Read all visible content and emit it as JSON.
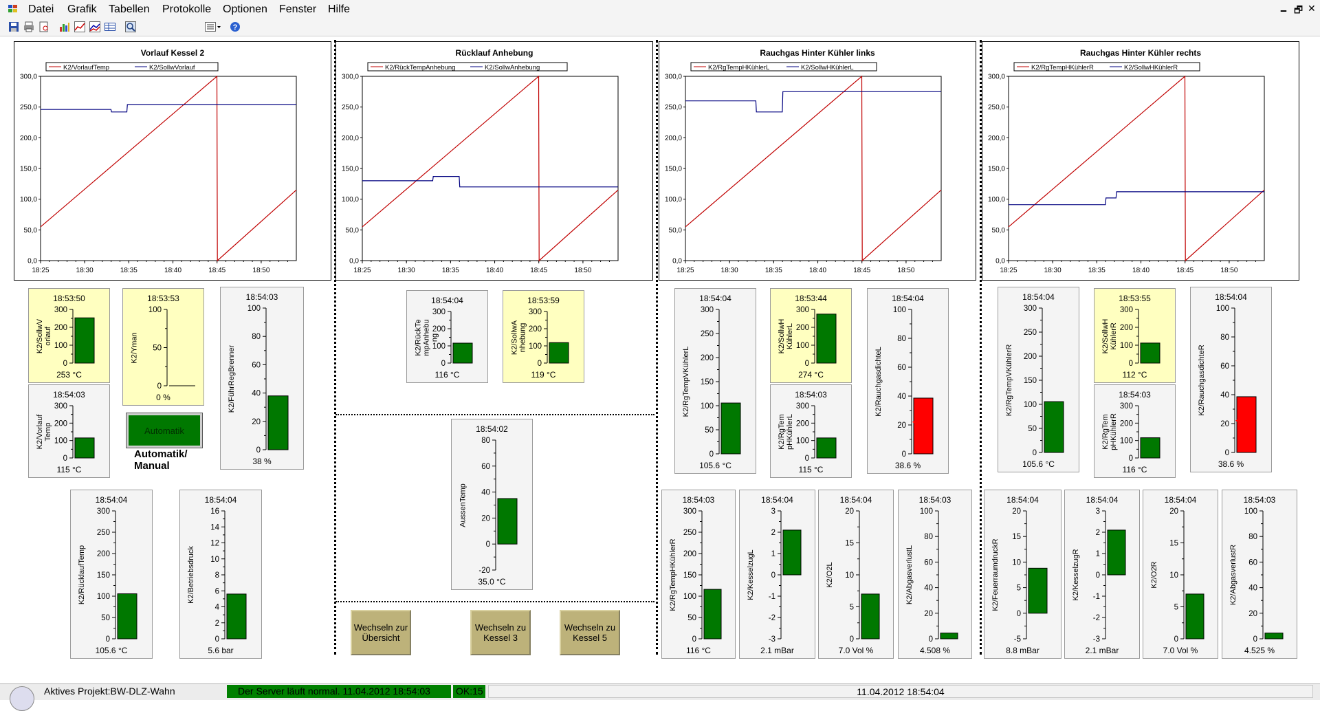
{
  "menu": [
    "Datei",
    "Grafik",
    "Tabellen",
    "Protokolle",
    "Optionen",
    "Fenster",
    "Hilfe"
  ],
  "window_buttons": [
    "🗕",
    "🗗",
    "✕"
  ],
  "charts": [
    {
      "title": "Vorlauf Kessel 2",
      "legend": [
        "K2/VorlaufTemp",
        "K2/SollwVorlauf"
      ]
    },
    {
      "title": "Rücklauf Anhebung",
      "legend": [
        "K2/RückTempAnhebung",
        "K2/SollwAnhebung"
      ]
    },
    {
      "title": "Rauchgas Hinter Kühler links",
      "legend": [
        "K2/RgTempHKühlerL",
        "K2/SollwHKühlerL"
      ]
    },
    {
      "title": "Rauchgas Hinter Kühler rechts",
      "legend": [
        "K2/RgTempHKühlerR",
        "K2/SollwHKühlerR"
      ]
    }
  ],
  "chart_data": [
    {
      "type": "line",
      "title": "Vorlauf Kessel 2",
      "ylim": [
        0,
        300
      ],
      "yticks": [
        "0,0",
        "50,0",
        "100,0",
        "150,0",
        "200,0",
        "250,0",
        "300,0"
      ],
      "xticks": [
        "18:25",
        "18:30",
        "18:35",
        "18:40",
        "18:45",
        "18:50"
      ],
      "series": [
        {
          "name": "K2/VorlaufTemp",
          "color": "#c00000",
          "x": [
            18.417,
            18.75,
            18.751,
            18.9
          ],
          "y": [
            55,
            300,
            0,
            115
          ]
        },
        {
          "name": "K2/SollwVorlauf",
          "color": "#000080",
          "x": [
            18.417,
            18.55,
            18.551,
            18.58,
            18.581,
            18.9
          ],
          "y": [
            246,
            246,
            242,
            242,
            254,
            254
          ]
        }
      ]
    },
    {
      "type": "line",
      "title": "Rücklauf Anhebung",
      "ylim": [
        0,
        300
      ],
      "yticks": [
        "0,0",
        "50,0",
        "100,0",
        "150,0",
        "200,0",
        "250,0",
        "300,0"
      ],
      "xticks": [
        "18:25",
        "18:30",
        "18:35",
        "18:40",
        "18:45",
        "18:50"
      ],
      "series": [
        {
          "name": "K2/RückTempAnhebung",
          "color": "#c00000",
          "x": [
            18.417,
            18.75,
            18.751,
            18.9
          ],
          "y": [
            55,
            300,
            0,
            115
          ]
        },
        {
          "name": "K2/SollwAnhebung",
          "color": "#000080",
          "x": [
            18.417,
            18.55,
            18.551,
            18.6,
            18.601,
            18.9
          ],
          "y": [
            130,
            130,
            137,
            137,
            120,
            120
          ]
        }
      ]
    },
    {
      "type": "line",
      "title": "Rauchgas Hinter Kühler links",
      "ylim": [
        0,
        300
      ],
      "yticks": [
        "0,0",
        "50,0",
        "100,0",
        "150,0",
        "200,0",
        "250,0",
        "300,0"
      ],
      "xticks": [
        "18:25",
        "18:30",
        "18:35",
        "18:40",
        "18:45",
        "18:50"
      ],
      "series": [
        {
          "name": "K2/RgTempHKühlerL",
          "color": "#c00000",
          "x": [
            18.417,
            18.75,
            18.751,
            18.9
          ],
          "y": [
            55,
            300,
            0,
            115
          ]
        },
        {
          "name": "K2/SollwHKühlerL",
          "color": "#000080",
          "x": [
            18.417,
            18.55,
            18.551,
            18.6,
            18.601,
            18.9
          ],
          "y": [
            260,
            260,
            242,
            242,
            275,
            275
          ]
        }
      ]
    },
    {
      "type": "line",
      "title": "Rauchgas Hinter Kühler rechts",
      "ylim": [
        0,
        300
      ],
      "yticks": [
        "0,0",
        "50,0",
        "100,0",
        "150,0",
        "200,0",
        "250,0",
        "300,0"
      ],
      "xticks": [
        "18:25",
        "18:30",
        "18:35",
        "18:40",
        "18:45",
        "18:50"
      ],
      "series": [
        {
          "name": "K2/RgTempHKühlerR",
          "color": "#c00000",
          "x": [
            18.417,
            18.75,
            18.751,
            18.9
          ],
          "y": [
            55,
            300,
            0,
            115
          ]
        },
        {
          "name": "K2/SollwHKühlerR",
          "color": "#000080",
          "x": [
            18.417,
            18.6,
            18.601,
            18.62,
            18.621,
            18.9
          ],
          "y": [
            91,
            91,
            102,
            102,
            112,
            112
          ]
        }
      ]
    }
  ],
  "gauges": [
    {
      "name": "K2/SollwVorlauf",
      "name_lines": [
        "K2/SollwV",
        "orlauf"
      ],
      "time": "18:53:50",
      "value_text": "253 °C",
      "value": 253,
      "min": 0,
      "max": 300,
      "ticks": [
        "300",
        "200",
        "100",
        "0"
      ],
      "yellow": true,
      "color": "#007800"
    },
    {
      "name": "K2/Yman",
      "name_lines": [
        "K2/Yman"
      ],
      "time": "18:53:53",
      "value_text": "0 %",
      "value": 0,
      "min": 0,
      "max": 100,
      "ticks": [
        "100",
        "50",
        "0"
      ],
      "yellow": true,
      "color": "#007800"
    },
    {
      "name": "K2/FührRegBrenner",
      "name_lines": [
        "K2/FührRegBrenner"
      ],
      "time": "18:54:03",
      "value_text": "38 %",
      "value": 38,
      "min": 0,
      "max": 100,
      "ticks": [
        "100",
        "80",
        "60",
        "40",
        "20",
        "0"
      ],
      "yellow": false,
      "color": "#007800"
    },
    {
      "name": "K2/VorlaufTemp",
      "name_lines": [
        "K2/Vorlauf",
        "Temp"
      ],
      "time": "18:54:03",
      "value_text": "115 °C",
      "value": 115,
      "min": 0,
      "max": 300,
      "ticks": [
        "300",
        "200",
        "100",
        "0"
      ],
      "yellow": false,
      "color": "#007800"
    },
    {
      "name": "K2/RücklaufTemp",
      "name_lines": [
        "K2/RücklaufTemp"
      ],
      "time": "18:54:04",
      "value_text": "105.6 °C",
      "value": 105.6,
      "min": 0,
      "max": 300,
      "ticks": [
        "300",
        "250",
        "200",
        "150",
        "100",
        "50",
        "0"
      ],
      "yellow": false,
      "color": "#007800"
    },
    {
      "name": "K2/Betriebsdruck",
      "name_lines": [
        "K2/Betriebsdruck"
      ],
      "time": "18:54:04",
      "value_text": "5.6 bar",
      "value": 5.6,
      "min": 0,
      "max": 16,
      "ticks": [
        "16",
        "14",
        "12",
        "10",
        "8",
        "6",
        "4",
        "2",
        "0"
      ],
      "yellow": false,
      "color": "#007800"
    },
    {
      "name": "K2/RückTempAnhebung",
      "name_lines": [
        "K2/RückTe",
        "mpAnhebu",
        "ng"
      ],
      "time": "18:54:04",
      "value_text": "116 °C",
      "value": 116,
      "min": 0,
      "max": 300,
      "ticks": [
        "300",
        "200",
        "100",
        "0"
      ],
      "yellow": false,
      "color": "#007800"
    },
    {
      "name": "K2/SollwAnhebung",
      "name_lines": [
        "K2/SollwA",
        "nhebung"
      ],
      "time": "18:53:59",
      "value_text": "119 °C",
      "value": 119,
      "min": 0,
      "max": 300,
      "ticks": [
        "300",
        "200",
        "100",
        "0"
      ],
      "yellow": true,
      "color": "#007800"
    },
    {
      "name": "AussenTemp",
      "name_lines": [
        "AussenTemp"
      ],
      "time": "18:54:02",
      "value_text": "35.0 °C",
      "value": 35,
      "min": -20,
      "max": 80,
      "ticks": [
        "80",
        "60",
        "40",
        "20",
        "0",
        "-20"
      ],
      "yellow": false,
      "color": "#007800"
    },
    {
      "name": "K2/RgTempVKühlerL",
      "name_lines": [
        "K2/RgTempVKühlerL"
      ],
      "time": "18:54:04",
      "value_text": "105.6 °C",
      "value": 105.6,
      "min": 0,
      "max": 300,
      "ticks": [
        "300",
        "250",
        "200",
        "150",
        "100",
        "50",
        "0"
      ],
      "yellow": false,
      "color": "#007800"
    },
    {
      "name": "K2/SollwHKühlerL",
      "name_lines": [
        "K2/SollwH",
        "KühlerL"
      ],
      "time": "18:53:44",
      "value_text": "274 °C",
      "value": 274,
      "min": 0,
      "max": 300,
      "ticks": [
        "300",
        "200",
        "100",
        "0"
      ],
      "yellow": true,
      "color": "#007800"
    },
    {
      "name": "K2/RgTempHKühlerL",
      "name_lines": [
        "K2/RgTem",
        "pHKühlerL"
      ],
      "time": "18:54:03",
      "value_text": "115 °C",
      "value": 115,
      "min": 0,
      "max": 300,
      "ticks": [
        "300",
        "200",
        "100",
        "0"
      ],
      "yellow": false,
      "color": "#007800"
    },
    {
      "name": "K2/RauchgasdichteL",
      "name_lines": [
        "K2/RauchgasdichteL"
      ],
      "time": "18:54:04",
      "value_text": "38.6 %",
      "value": 38.6,
      "min": 0,
      "max": 100,
      "ticks": [
        "100",
        "80",
        "60",
        "40",
        "20",
        "0"
      ],
      "yellow": false,
      "color": "#ff0000",
      "marker": 22
    },
    {
      "name": "K2/RgTempVKühlerR",
      "name_lines": [
        "K2/RgTempVKühlerR"
      ],
      "time": "18:54:04",
      "value_text": "105.6 °C",
      "value": 105.6,
      "min": 0,
      "max": 300,
      "ticks": [
        "300",
        "250",
        "200",
        "150",
        "100",
        "50",
        "0"
      ],
      "yellow": false,
      "color": "#007800"
    },
    {
      "name": "K2/SollwHKühlerR",
      "name_lines": [
        "K2/SollwH",
        "KühlerR"
      ],
      "time": "18:53:55",
      "value_text": "112 °C",
      "value": 112,
      "min": 0,
      "max": 300,
      "ticks": [
        "300",
        "200",
        "100",
        "0"
      ],
      "yellow": true,
      "color": "#007800"
    },
    {
      "name": "K2/RgTempHKühlerR",
      "name_lines": [
        "K2/RgTem",
        "pHKühlerR"
      ],
      "time": "18:54:03",
      "value_text": "116 °C",
      "value": 116,
      "min": 0,
      "max": 300,
      "ticks": [
        "300",
        "200",
        "100",
        "0"
      ],
      "yellow": false,
      "color": "#007800"
    },
    {
      "name": "K2/RauchgasdichteR",
      "name_lines": [
        "K2/RauchgasdichteR"
      ],
      "time": "18:54:04",
      "value_text": "38.6 %",
      "value": 38.6,
      "min": 0,
      "max": 100,
      "ticks": [
        "100",
        "80",
        "60",
        "40",
        "20",
        "0"
      ],
      "yellow": false,
      "color": "#ff0000",
      "marker": 22
    },
    {
      "name": "K2/RgTempHKühlerR",
      "name_lines": [
        "K2/RgTempHKühlerR"
      ],
      "time": "18:54:03",
      "value_text": "116 °C",
      "value": 116,
      "min": 0,
      "max": 300,
      "ticks": [
        "300",
        "250",
        "200",
        "150",
        "100",
        "50",
        "0"
      ],
      "yellow": false,
      "color": "#007800"
    },
    {
      "name": "K2/KesselzugL",
      "name_lines": [
        "K2/KesselzugL"
      ],
      "time": "18:54:04",
      "value_text": "2.1 mBar",
      "value": 2.1,
      "min": -3,
      "max": 3,
      "ticks": [
        "3",
        "2",
        "1",
        "0",
        "-1",
        "-2",
        "-3"
      ],
      "yellow": false,
      "color": "#007800"
    },
    {
      "name": "K2/O2L",
      "name_lines": [
        "K2/O2L"
      ],
      "time": "18:54:04",
      "value_text": "7.0 Vol %",
      "value": 7,
      "min": 0,
      "max": 20,
      "ticks": [
        "20",
        "15",
        "10",
        "5",
        "0"
      ],
      "yellow": false,
      "color": "#007800"
    },
    {
      "name": "K2/AbgasverlustL",
      "name_lines": [
        "K2/AbgasverlustL"
      ],
      "time": "18:54:03",
      "value_text": "4.508 %",
      "value": 4.508,
      "min": 0,
      "max": 100,
      "ticks": [
        "100",
        "80",
        "60",
        "40",
        "20",
        "0"
      ],
      "yellow": false,
      "color": "#007800"
    },
    {
      "name": "K2/FeuerraumdruckR",
      "name_lines": [
        "K2/FeuerraumdruckR"
      ],
      "time": "18:54:04",
      "value_text": "8.8 mBar",
      "value": 8.8,
      "min": -5,
      "max": 20,
      "ticks": [
        "20",
        "15",
        "10",
        "5",
        "0",
        "-5"
      ],
      "yellow": false,
      "color": "#007800"
    },
    {
      "name": "K2/KesselzugR",
      "name_lines": [
        "K2/KesselzugR"
      ],
      "time": "18:54:04",
      "value_text": "2.1 mBar",
      "value": 2.1,
      "min": -3,
      "max": 3,
      "ticks": [
        "3",
        "2",
        "1",
        "0",
        "-1",
        "-2",
        "-3"
      ],
      "yellow": false,
      "color": "#007800"
    },
    {
      "name": "K2/O2R",
      "name_lines": [
        "K2/O2R"
      ],
      "time": "18:54:04",
      "value_text": "7.0 Vol %",
      "value": 7,
      "min": 0,
      "max": 20,
      "ticks": [
        "20",
        "15",
        "10",
        "5",
        "0"
      ],
      "yellow": false,
      "color": "#007800"
    },
    {
      "name": "K2/AbgasverlustR",
      "name_lines": [
        "K2/AbgasverlustR"
      ],
      "time": "18:54:03",
      "value_text": "4.525 %",
      "value": 4.525,
      "min": 0,
      "max": 100,
      "ticks": [
        "100",
        "80",
        "60",
        "40",
        "20",
        "0"
      ],
      "yellow": false,
      "color": "#007800"
    }
  ],
  "automatik": {
    "button_label": "Automatik",
    "caption_line1": "Automatik/",
    "caption_line2": "Manual"
  },
  "nav_buttons": [
    {
      "label": "Wechseln zur Übersicht"
    },
    {
      "label": "Wechseln zu Kessel 3"
    },
    {
      "label": "Wechseln zu Kessel 5"
    }
  ],
  "statusbar": {
    "project": "Aktives Projekt:BW-DLZ-Wahn",
    "server": "Der Server läuft normal.  11.04.2012 18:54:03",
    "ok": "OK:15",
    "datetime": "11.04.2012 18:54:04"
  },
  "colors": {
    "ok_green": "#007800",
    "alarm_red": "#ff0000",
    "trend_red": "#c00000",
    "setpoint_blue": "#000080",
    "highlight_yellow": "#ffffc0",
    "button_khaki": "#bdb27a",
    "status_green": "#008000"
  }
}
